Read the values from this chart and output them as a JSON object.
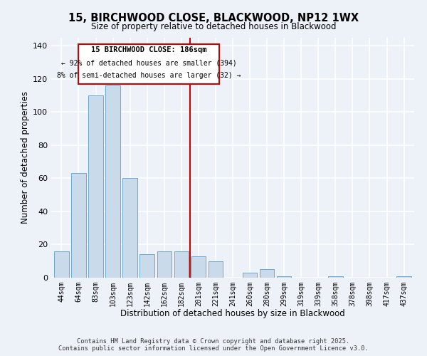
{
  "title": "15, BIRCHWOOD CLOSE, BLACKWOOD, NP12 1WX",
  "subtitle": "Size of property relative to detached houses in Blackwood",
  "xlabel": "Distribution of detached houses by size in Blackwood",
  "ylabel": "Number of detached properties",
  "bar_labels": [
    "44sqm",
    "64sqm",
    "83sqm",
    "103sqm",
    "123sqm",
    "142sqm",
    "162sqm",
    "182sqm",
    "201sqm",
    "221sqm",
    "241sqm",
    "260sqm",
    "280sqm",
    "299sqm",
    "319sqm",
    "339sqm",
    "358sqm",
    "378sqm",
    "398sqm",
    "417sqm",
    "437sqm"
  ],
  "bar_values": [
    16,
    63,
    110,
    116,
    60,
    14,
    16,
    16,
    13,
    10,
    0,
    3,
    5,
    1,
    0,
    0,
    1,
    0,
    0,
    0,
    1
  ],
  "bar_color": "#c9daea",
  "bar_edge_color": "#6aaad4",
  "vline_x": 7.5,
  "vline_color": "#cc0000",
  "ylim": [
    0,
    145
  ],
  "yticks": [
    0,
    20,
    40,
    60,
    80,
    100,
    120,
    140
  ],
  "annotation_title": "15 BIRCHWOOD CLOSE: 186sqm",
  "annotation_line1": "← 92% of detached houses are smaller (394)",
  "annotation_line2": "8% of semi-detached houses are larger (32) →",
  "annotation_box_color": "#ffffff",
  "annotation_box_edge": "#cc0000",
  "footer_line1": "Contains HM Land Registry data © Crown copyright and database right 2025.",
  "footer_line2": "Contains public sector information licensed under the Open Government Licence v3.0.",
  "background_color": "#edf2f9",
  "plot_bg_color": "#edf2f9",
  "grid_color": "#ffffff"
}
